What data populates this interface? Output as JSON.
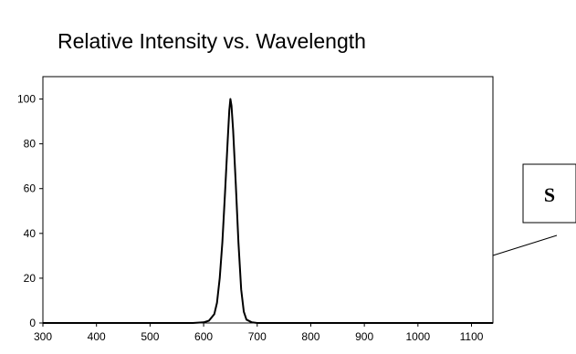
{
  "chart_data": {
    "type": "line",
    "title": "Relative Intensity vs. Wavelength",
    "xlabel": "",
    "ylabel": "",
    "xlim": [
      300,
      1140
    ],
    "ylim": [
      0,
      110
    ],
    "x_ticks": [
      300,
      400,
      500,
      600,
      700,
      800,
      900,
      1000,
      1100
    ],
    "y_ticks": [
      0,
      20,
      40,
      60,
      80,
      100
    ],
    "grid": false,
    "series": [
      {
        "color": "#000000",
        "x": [
          300,
          400,
          500,
          580,
          600,
          610,
          620,
          625,
          630,
          635,
          640,
          645,
          648,
          650,
          652,
          655,
          660,
          665,
          670,
          675,
          680,
          690,
          700,
          800,
          900,
          1000,
          1100,
          1140
        ],
        "y": [
          0,
          0,
          0,
          0,
          0.3,
          1,
          4,
          9,
          20,
          36,
          58,
          82,
          95,
          100,
          97,
          86,
          62,
          36,
          15,
          5,
          1.5,
          0.3,
          0,
          0,
          0,
          0,
          0,
          0
        ]
      }
    ]
  },
  "annotation": {
    "label": "S"
  }
}
